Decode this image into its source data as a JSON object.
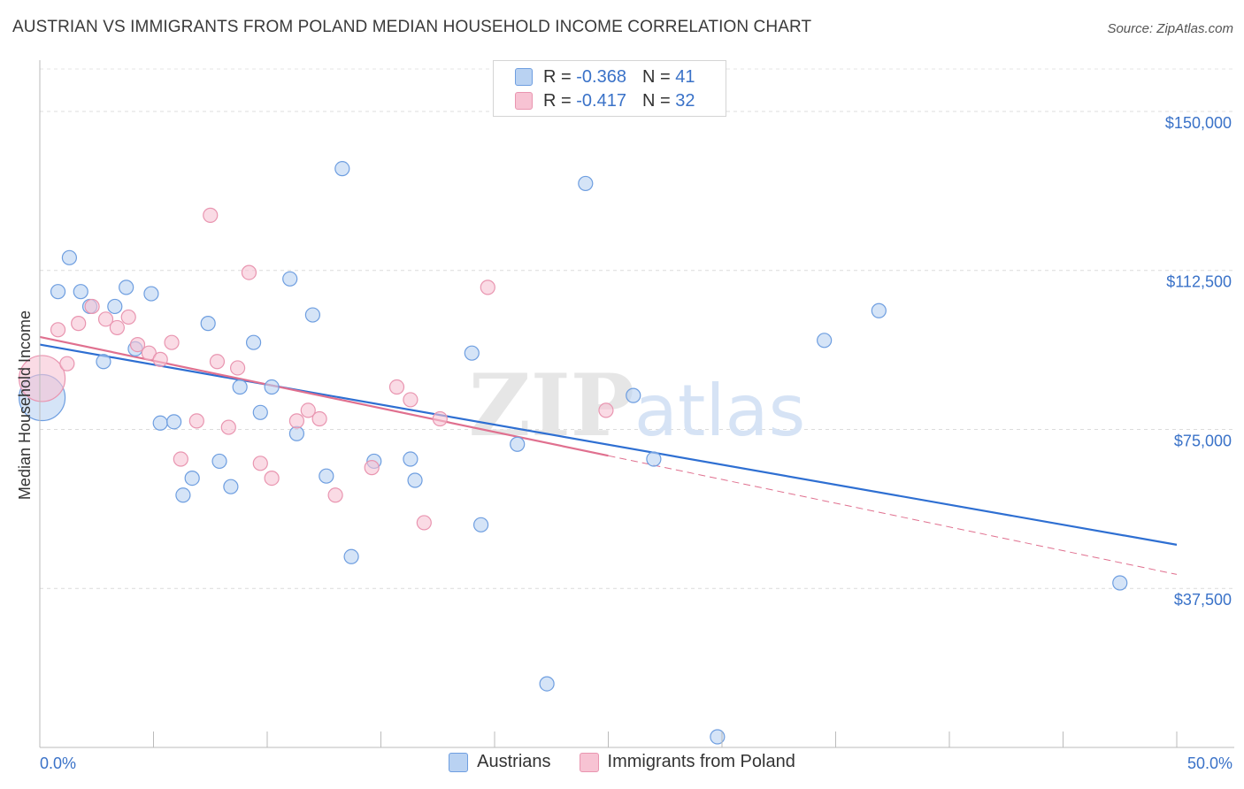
{
  "chart_data": {
    "type": "scatter",
    "title": "AUSTRIAN VS IMMIGRANTS FROM POLAND MEDIAN HOUSEHOLD INCOME CORRELATION CHART",
    "source": "Source: ZipAtlas.com",
    "xlabel": "",
    "ylabel": "Median Household Income",
    "xlim": [
      0,
      50
    ],
    "ylim": [
      0,
      160000
    ],
    "x_tick_labels": [
      "0.0%",
      "50.0%"
    ],
    "y_ticks": [
      37500,
      75000,
      112500,
      150000
    ],
    "y_tick_labels": [
      "$37,500",
      "$75,000",
      "$112,500",
      "$150,000"
    ],
    "grid": true,
    "legend_position": "top-center",
    "watermark": "ZIPatlas",
    "colors": {
      "austrians_fill": "#b9d2f2",
      "austrians_stroke": "#6e9ee0",
      "austrians_line": "#2e6fd2",
      "poland_fill": "#f7c3d3",
      "poland_stroke": "#e995b0",
      "poland_line": "#e0708f",
      "tick_label": "#3a72c8"
    },
    "stats": [
      {
        "r_label": "R =",
        "r_value": "-0.368",
        "n_label": "N =",
        "n_value": "41"
      },
      {
        "r_label": "R =",
        "r_value": "-0.417",
        "n_label": "N =",
        "n_value": "32"
      }
    ],
    "series": [
      {
        "name": "Austrians",
        "trend": {
          "x0": 0,
          "y0": 95000,
          "x1": 50,
          "y1": 47800
        },
        "points": [
          {
            "x": 0.1,
            "y": 82500,
            "big": true
          },
          {
            "x": 1.3,
            "y": 115500
          },
          {
            "x": 0.8,
            "y": 107500
          },
          {
            "x": 1.8,
            "y": 107500
          },
          {
            "x": 3.8,
            "y": 108500
          },
          {
            "x": 4.9,
            "y": 107000
          },
          {
            "x": 2.2,
            "y": 104000
          },
          {
            "x": 3.3,
            "y": 104000
          },
          {
            "x": 2.8,
            "y": 91000
          },
          {
            "x": 4.2,
            "y": 94000
          },
          {
            "x": 7.4,
            "y": 100000
          },
          {
            "x": 9.4,
            "y": 95500
          },
          {
            "x": 11.0,
            "y": 110500
          },
          {
            "x": 12.0,
            "y": 102000
          },
          {
            "x": 13.3,
            "y": 136500
          },
          {
            "x": 8.8,
            "y": 85000
          },
          {
            "x": 10.2,
            "y": 85000
          },
          {
            "x": 9.7,
            "y": 79000
          },
          {
            "x": 11.3,
            "y": 74000
          },
          {
            "x": 5.3,
            "y": 76500
          },
          {
            "x": 5.9,
            "y": 76800
          },
          {
            "x": 7.9,
            "y": 67500
          },
          {
            "x": 6.7,
            "y": 63500
          },
          {
            "x": 6.3,
            "y": 59500
          },
          {
            "x": 8.4,
            "y": 61500
          },
          {
            "x": 12.6,
            "y": 64000
          },
          {
            "x": 14.7,
            "y": 67500
          },
          {
            "x": 16.3,
            "y": 68000
          },
          {
            "x": 16.5,
            "y": 63000
          },
          {
            "x": 19.0,
            "y": 93000
          },
          {
            "x": 13.7,
            "y": 45000
          },
          {
            "x": 19.4,
            "y": 52500
          },
          {
            "x": 21.0,
            "y": 71500
          },
          {
            "x": 24.0,
            "y": 133000
          },
          {
            "x": 26.1,
            "y": 83000
          },
          {
            "x": 27.0,
            "y": 68000
          },
          {
            "x": 34.5,
            "y": 96000
          },
          {
            "x": 36.9,
            "y": 103000
          },
          {
            "x": 22.3,
            "y": 15000
          },
          {
            "x": 29.8,
            "y": 2500
          },
          {
            "x": 47.5,
            "y": 38800
          }
        ]
      },
      {
        "name": "Immigrants from Poland",
        "trend": {
          "x0": 0,
          "y0": 96800,
          "x1": 25,
          "y1": 68800,
          "dash_x1": 50,
          "dash_y1": 40800
        },
        "points": [
          {
            "x": 0.1,
            "y": 87000,
            "big": true
          },
          {
            "x": 0.8,
            "y": 98500
          },
          {
            "x": 1.2,
            "y": 90500
          },
          {
            "x": 1.7,
            "y": 100000
          },
          {
            "x": 2.3,
            "y": 104000
          },
          {
            "x": 2.9,
            "y": 101000
          },
          {
            "x": 3.4,
            "y": 99000
          },
          {
            "x": 3.9,
            "y": 101500
          },
          {
            "x": 4.3,
            "y": 95000
          },
          {
            "x": 4.8,
            "y": 93000
          },
          {
            "x": 5.3,
            "y": 91500
          },
          {
            "x": 5.8,
            "y": 95500
          },
          {
            "x": 6.2,
            "y": 68000
          },
          {
            "x": 6.9,
            "y": 77000
          },
          {
            "x": 7.5,
            "y": 125500
          },
          {
            "x": 7.8,
            "y": 91000
          },
          {
            "x": 8.3,
            "y": 75500
          },
          {
            "x": 8.7,
            "y": 89500
          },
          {
            "x": 9.2,
            "y": 112000
          },
          {
            "x": 9.7,
            "y": 67000
          },
          {
            "x": 10.2,
            "y": 63500
          },
          {
            "x": 11.3,
            "y": 77000
          },
          {
            "x": 11.8,
            "y": 79500
          },
          {
            "x": 12.3,
            "y": 77500
          },
          {
            "x": 13.0,
            "y": 59500
          },
          {
            "x": 14.6,
            "y": 66000
          },
          {
            "x": 15.7,
            "y": 85000
          },
          {
            "x": 16.3,
            "y": 82000
          },
          {
            "x": 16.9,
            "y": 53000
          },
          {
            "x": 17.6,
            "y": 77500
          },
          {
            "x": 19.7,
            "y": 108500
          },
          {
            "x": 24.9,
            "y": 79500
          }
        ]
      }
    ]
  }
}
